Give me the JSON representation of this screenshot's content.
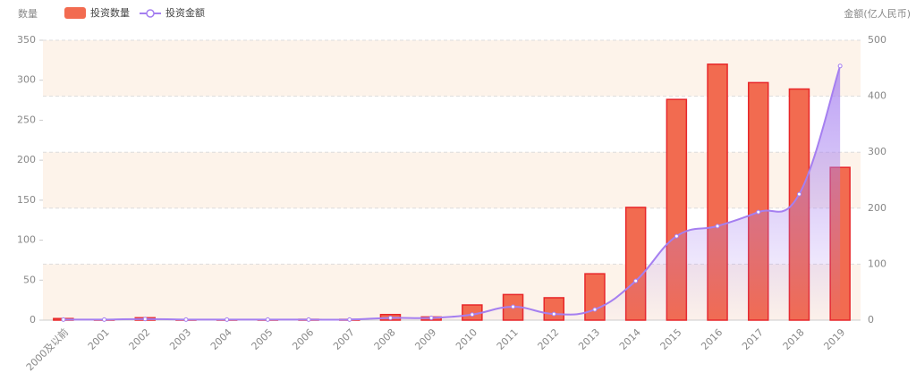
{
  "chart_data": {
    "type": "bar-line",
    "ylabel": "数量",
    "y2label": "金额(亿人民币)",
    "categories": [
      "2000及以前",
      "2001",
      "2002",
      "2003",
      "2004",
      "2005",
      "2006",
      "2007",
      "2008",
      "2009",
      "2010",
      "2011",
      "2012",
      "2013",
      "2014",
      "2015",
      "2016",
      "2017",
      "2018",
      "2019"
    ],
    "series": [
      {
        "name": "投资数量",
        "type": "bar",
        "color": "#f26b50",
        "values": [
          2,
          0,
          3,
          0,
          0,
          0,
          1,
          1,
          7,
          4,
          19,
          32,
          28,
          58,
          141,
          276,
          320,
          297,
          289,
          191
        ]
      },
      {
        "name": "投资金额",
        "type": "line",
        "axis": "y2",
        "color": "#a57ff0",
        "values": [
          1,
          1,
          2,
          1,
          1,
          1,
          1,
          1,
          4,
          4,
          10,
          24,
          11,
          19,
          70,
          150,
          168,
          193,
          225,
          454
        ]
      }
    ],
    "ylim": [
      0,
      350
    ],
    "yticks": [
      0,
      50,
      100,
      150,
      200,
      250,
      300,
      350
    ],
    "y2lim": [
      0,
      500
    ],
    "y2ticks": [
      0,
      100,
      200,
      300,
      400,
      500
    ],
    "grid": true
  }
}
